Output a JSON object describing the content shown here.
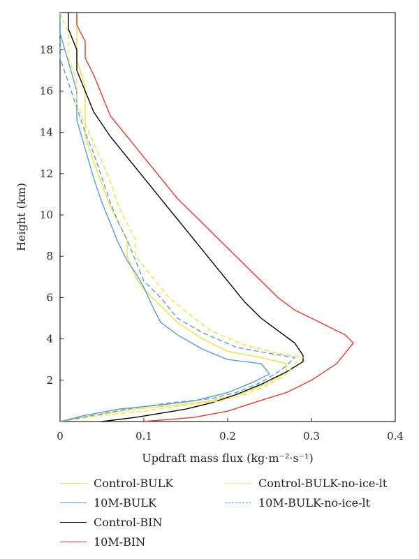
{
  "chart_data": {
    "type": "line",
    "title": "",
    "xlabel": "Updraft mass flux (kg·m⁻²·s⁻¹)",
    "ylabel": "Height (km)",
    "xlim": [
      0,
      0.4
    ],
    "ylim": [
      0,
      19.8
    ],
    "xticks": [
      "0",
      "0.1",
      "0.2",
      "0.3",
      "0.4"
    ],
    "yticks": [
      "2",
      "4",
      "6",
      "8",
      "10",
      "12",
      "14",
      "16",
      "18"
    ],
    "grid": false,
    "legend_position": "below",
    "series": [
      {
        "name": "Control-BULK",
        "color": "#f0e040",
        "dash": "solid",
        "points": [
          [
            0.0,
            0.0
          ],
          [
            0.04,
            0.3
          ],
          [
            0.09,
            0.6
          ],
          [
            0.14,
            0.8
          ],
          [
            0.18,
            1.0
          ],
          [
            0.22,
            1.4
          ],
          [
            0.25,
            1.9
          ],
          [
            0.27,
            2.4
          ],
          [
            0.27,
            2.8
          ],
          [
            0.24,
            3.1
          ],
          [
            0.2,
            3.4
          ],
          [
            0.17,
            4.0
          ],
          [
            0.14,
            4.8
          ],
          [
            0.12,
            5.6
          ],
          [
            0.1,
            6.4
          ],
          [
            0.09,
            7.0
          ],
          [
            0.08,
            8.0
          ],
          [
            0.08,
            8.8
          ],
          [
            0.07,
            9.6
          ],
          [
            0.06,
            10.4
          ],
          [
            0.05,
            11.5
          ],
          [
            0.04,
            12.6
          ],
          [
            0.03,
            13.8
          ],
          [
            0.03,
            15.0
          ],
          [
            0.03,
            16.2
          ],
          [
            0.02,
            17.5
          ],
          [
            0.02,
            18.8
          ],
          [
            0.02,
            19.8
          ]
        ]
      },
      {
        "name": "10M-BULK",
        "color": "#5a9bd4",
        "dash": "solid",
        "points": [
          [
            0.0,
            0.0
          ],
          [
            0.03,
            0.3
          ],
          [
            0.07,
            0.6
          ],
          [
            0.12,
            0.8
          ],
          [
            0.16,
            1.0
          ],
          [
            0.2,
            1.4
          ],
          [
            0.23,
            1.9
          ],
          [
            0.25,
            2.3
          ],
          [
            0.24,
            2.8
          ],
          [
            0.2,
            3.0
          ],
          [
            0.17,
            3.5
          ],
          [
            0.14,
            4.2
          ],
          [
            0.12,
            4.8
          ],
          [
            0.11,
            5.6
          ],
          [
            0.1,
            6.5
          ],
          [
            0.09,
            7.2
          ],
          [
            0.08,
            7.8
          ],
          [
            0.07,
            8.6
          ],
          [
            0.06,
            9.6
          ],
          [
            0.05,
            10.6
          ],
          [
            0.04,
            11.8
          ],
          [
            0.03,
            13.2
          ],
          [
            0.02,
            14.6
          ],
          [
            0.02,
            16.0
          ],
          [
            0.01,
            17.4
          ],
          [
            0.0,
            18.8
          ],
          [
            0.0,
            19.8
          ]
        ]
      },
      {
        "name": "Control-BIN",
        "color": "#000000",
        "dash": "solid",
        "points": [
          [
            0.05,
            0.0
          ],
          [
            0.09,
            0.2
          ],
          [
            0.12,
            0.4
          ],
          [
            0.15,
            0.6
          ],
          [
            0.18,
            0.9
          ],
          [
            0.21,
            1.3
          ],
          [
            0.24,
            1.8
          ],
          [
            0.27,
            2.4
          ],
          [
            0.29,
            2.9
          ],
          [
            0.29,
            3.2
          ],
          [
            0.28,
            3.8
          ],
          [
            0.26,
            4.4
          ],
          [
            0.24,
            5.0
          ],
          [
            0.22,
            5.8
          ],
          [
            0.2,
            6.8
          ],
          [
            0.18,
            7.8
          ],
          [
            0.16,
            8.8
          ],
          [
            0.14,
            9.8
          ],
          [
            0.12,
            10.8
          ],
          [
            0.1,
            11.8
          ],
          [
            0.08,
            12.8
          ],
          [
            0.06,
            13.8
          ],
          [
            0.04,
            15.0
          ],
          [
            0.03,
            16.0
          ],
          [
            0.02,
            17.0
          ],
          [
            0.02,
            18.0
          ],
          [
            0.01,
            19.0
          ],
          [
            0.01,
            19.8
          ]
        ]
      },
      {
        "name": "10M-BIN",
        "color": "#e03c2e",
        "dash": "solid",
        "points": [
          [
            0.1,
            0.0
          ],
          [
            0.16,
            0.2
          ],
          [
            0.2,
            0.5
          ],
          [
            0.23,
            0.9
          ],
          [
            0.27,
            1.4
          ],
          [
            0.3,
            2.0
          ],
          [
            0.33,
            2.8
          ],
          [
            0.34,
            3.3
          ],
          [
            0.35,
            3.8
          ],
          [
            0.34,
            4.2
          ],
          [
            0.31,
            4.8
          ],
          [
            0.28,
            5.4
          ],
          [
            0.26,
            6.0
          ],
          [
            0.24,
            6.8
          ],
          [
            0.22,
            7.6
          ],
          [
            0.2,
            8.4
          ],
          [
            0.18,
            9.2
          ],
          [
            0.16,
            10.0
          ],
          [
            0.14,
            10.8
          ],
          [
            0.12,
            11.8
          ],
          [
            0.1,
            12.8
          ],
          [
            0.08,
            13.8
          ],
          [
            0.06,
            14.8
          ],
          [
            0.05,
            15.8
          ],
          [
            0.04,
            16.8
          ],
          [
            0.03,
            17.6
          ],
          [
            0.03,
            18.4
          ],
          [
            0.02,
            19.2
          ],
          [
            0.02,
            19.8
          ]
        ]
      },
      {
        "name": "Control-BULK-no-ice-lt",
        "color": "#f0e040",
        "dash": "dashed",
        "points": [
          [
            0.0,
            0.0
          ],
          [
            0.05,
            0.3
          ],
          [
            0.1,
            0.5
          ],
          [
            0.15,
            0.8
          ],
          [
            0.19,
            1.0
          ],
          [
            0.22,
            1.3
          ],
          [
            0.25,
            1.8
          ],
          [
            0.27,
            2.3
          ],
          [
            0.28,
            2.8
          ],
          [
            0.29,
            3.1
          ],
          [
            0.26,
            3.3
          ],
          [
            0.22,
            3.7
          ],
          [
            0.18,
            4.4
          ],
          [
            0.16,
            5.0
          ],
          [
            0.13,
            6.0
          ],
          [
            0.11,
            7.0
          ],
          [
            0.09,
            8.0
          ],
          [
            0.09,
            8.8
          ],
          [
            0.08,
            9.6
          ],
          [
            0.07,
            10.4
          ],
          [
            0.06,
            11.6
          ],
          [
            0.05,
            12.6
          ],
          [
            0.04,
            13.5
          ],
          [
            0.03,
            14.4
          ],
          [
            0.02,
            15.4
          ],
          [
            0.02,
            16.5
          ],
          [
            0.01,
            17.6
          ],
          [
            0.01,
            18.8
          ],
          [
            0.0,
            19.8
          ]
        ]
      },
      {
        "name": "10M-BULK-no-ice-lt",
        "color": "#5a9bd4",
        "dash": "dashed",
        "points": [
          [
            0.0,
            0.0
          ],
          [
            0.04,
            0.3
          ],
          [
            0.08,
            0.6
          ],
          [
            0.13,
            0.9
          ],
          [
            0.18,
            1.1
          ],
          [
            0.21,
            1.4
          ],
          [
            0.24,
            1.9
          ],
          [
            0.26,
            2.4
          ],
          [
            0.27,
            2.7
          ],
          [
            0.28,
            3.1
          ],
          [
            0.25,
            3.3
          ],
          [
            0.21,
            3.6
          ],
          [
            0.17,
            4.3
          ],
          [
            0.14,
            5.0
          ],
          [
            0.12,
            6.0
          ],
          [
            0.1,
            6.8
          ],
          [
            0.09,
            7.8
          ],
          [
            0.08,
            8.8
          ],
          [
            0.07,
            9.6
          ],
          [
            0.06,
            10.6
          ],
          [
            0.05,
            11.8
          ],
          [
            0.04,
            13.0
          ],
          [
            0.03,
            14.0
          ],
          [
            0.02,
            15.2
          ],
          [
            0.01,
            16.4
          ],
          [
            0.0,
            17.6
          ],
          [
            0.0,
            18.8
          ],
          [
            0.0,
            19.5
          ]
        ]
      }
    ]
  },
  "legend": {
    "items": [
      {
        "label": "Control-BULK",
        "color": "#f0e040",
        "dash": "solid"
      },
      {
        "label": "Control-BULK-no-ice-lt",
        "color": "#f0e040",
        "dash": "dashed"
      },
      {
        "label": "10M-BULK",
        "color": "#5a9bd4",
        "dash": "solid"
      },
      {
        "label": "10M-BULK-no-ice-lt",
        "color": "#5a9bd4",
        "dash": "dashed"
      },
      {
        "label": "Control-BIN",
        "color": "#000000",
        "dash": "solid"
      },
      {
        "label": "10M-BIN",
        "color": "#e03c2e",
        "dash": "solid"
      }
    ]
  }
}
